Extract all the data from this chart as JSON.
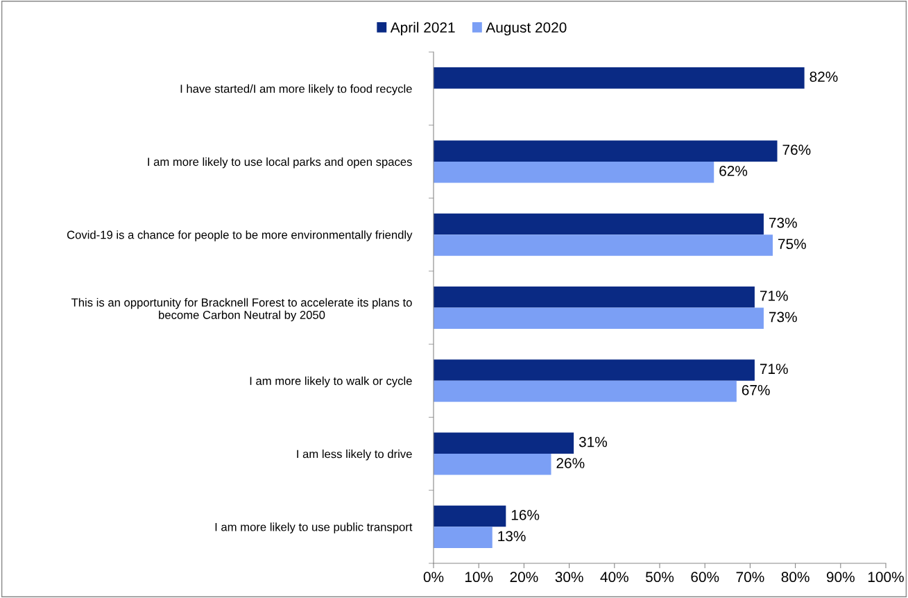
{
  "chart_data": {
    "type": "bar",
    "orientation": "horizontal",
    "categories": [
      "I have started/I am more likely to food recycle",
      "I am more likely to use local parks and open spaces",
      "Covid-19 is a chance for people to be more environmentally friendly",
      "This is an opportunity for Bracknell Forest to accelerate its plans to\nbecome Carbon Neutral by 2050",
      "I am more likely to walk or cycle",
      "I am less likely to drive",
      "I am more likely to use public transport"
    ],
    "series": [
      {
        "name": "April 2021",
        "color": "#0a2a84",
        "values": [
          82,
          76,
          73,
          71,
          71,
          31,
          16
        ],
        "value_labels": [
          "82%",
          "76%",
          "73%",
          "71%",
          "71%",
          "31%",
          "16%"
        ]
      },
      {
        "name": "August 2020",
        "color": "#7b9ff5",
        "values": [
          null,
          62,
          75,
          73,
          67,
          26,
          13
        ],
        "value_labels": [
          null,
          "62%",
          "75%",
          "73%",
          "67%",
          "26%",
          "13%"
        ]
      }
    ],
    "xlim": [
      0,
      100
    ],
    "xticks": [
      {
        "value": 0,
        "label": "0%"
      },
      {
        "value": 10,
        "label": "10%"
      },
      {
        "value": 20,
        "label": "20%"
      },
      {
        "value": 30,
        "label": "30%"
      },
      {
        "value": 40,
        "label": "40%"
      },
      {
        "value": 50,
        "label": "50%"
      },
      {
        "value": 60,
        "label": "60%"
      },
      {
        "value": 70,
        "label": "70%"
      },
      {
        "value": 80,
        "label": "80%"
      },
      {
        "value": 90,
        "label": "90%"
      },
      {
        "value": 100,
        "label": "100%"
      }
    ],
    "legend": "top",
    "grid": false
  }
}
